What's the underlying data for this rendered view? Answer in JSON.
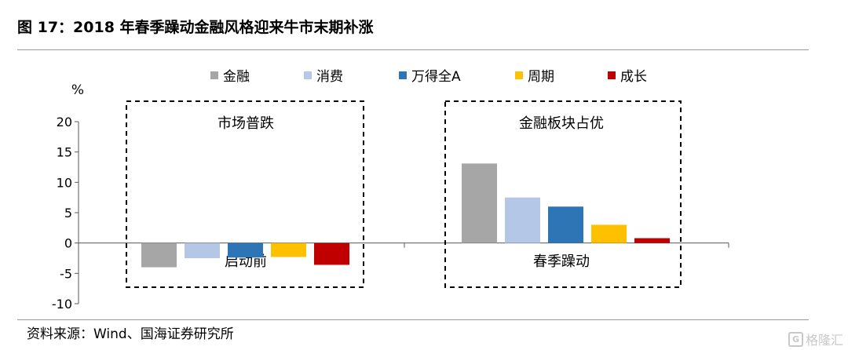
{
  "figure": {
    "title": "图 17：2018 年春季躁动金融风格迎来牛市末期补涨",
    "source": "资料来源：Wind、国海证券研究所",
    "watermark": "格隆汇",
    "watermark_logo": "G"
  },
  "colors": {
    "金融": "#a6a6a6",
    "消费": "#b4c7e7",
    "万得全A": "#2e75b6",
    "周期": "#ffc000",
    "成长": "#c00000",
    "axis": "#595959",
    "frame": "#000000"
  },
  "chart_data": {
    "type": "bar",
    "ylabel": "%",
    "ylim": [
      -10,
      20
    ],
    "yticks": [
      20,
      15,
      10,
      5,
      0,
      -5,
      -10
    ],
    "grid": false,
    "legend_position": "top",
    "series_names": [
      "金融",
      "消费",
      "万得全A",
      "周期",
      "成长"
    ],
    "groups": [
      {
        "category": "启动前",
        "box_label": "市场普跌",
        "values": [
          -4.0,
          -2.5,
          -2.4,
          -2.3,
          -3.6
        ]
      },
      {
        "category": "春季躁动",
        "box_label": "金融板块占优",
        "values": [
          13.1,
          7.5,
          6.0,
          3.0,
          0.8
        ]
      }
    ]
  }
}
